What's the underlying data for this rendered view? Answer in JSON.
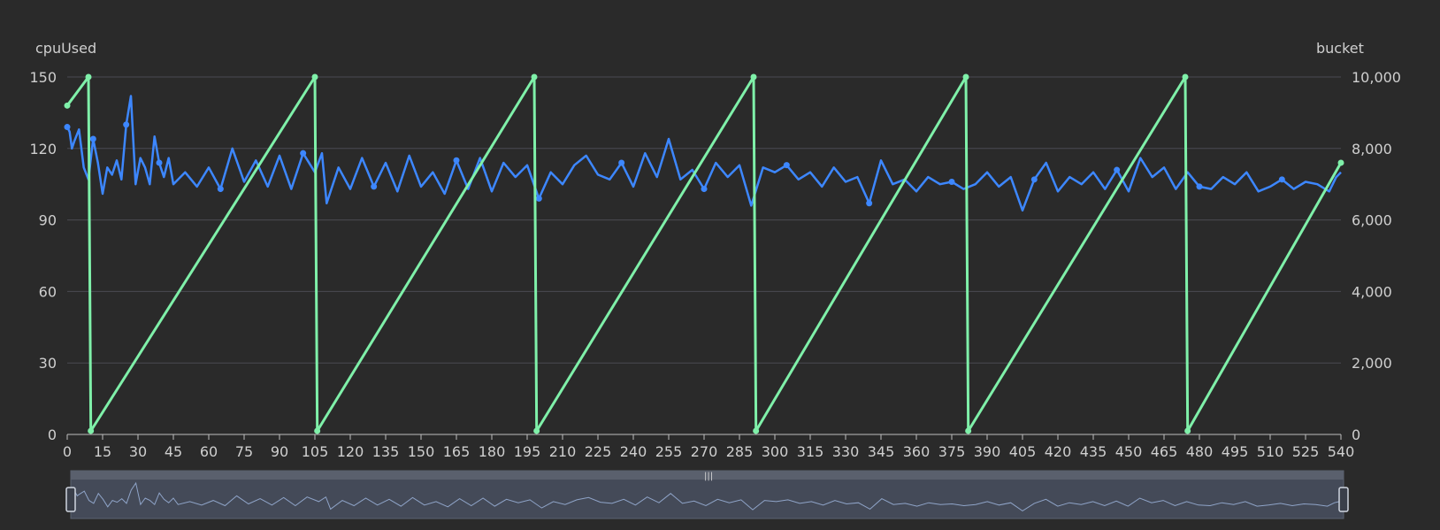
{
  "chart_data": {
    "type": "line",
    "xlabel": "",
    "ylabel_left": "cpuUsed",
    "ylabel_right": "bucket",
    "x_range": [
      0,
      540
    ],
    "x_ticks": [
      "0",
      "15",
      "30",
      "45",
      "60",
      "75",
      "90",
      "105",
      "120",
      "135",
      "150",
      "165",
      "180",
      "195",
      "210",
      "225",
      "240",
      "255",
      "270",
      "285",
      "300",
      "315",
      "330",
      "345",
      "360",
      "375",
      "390",
      "405",
      "420",
      "435",
      "450",
      "465",
      "480",
      "495",
      "510",
      "525",
      "540"
    ],
    "y_left_range": [
      0,
      150
    ],
    "y_left_ticks": [
      "0",
      "30",
      "60",
      "90",
      "120",
      "150"
    ],
    "y_right_range": [
      0,
      10000
    ],
    "y_right_ticks": [
      "0",
      "2,000",
      "4,000",
      "6,000",
      "8,000",
      "10,000"
    ],
    "grid": true,
    "dataZoom": true,
    "series": [
      {
        "axis": "left",
        "color": "#3d87ff",
        "points": [
          [
            0,
            129
          ],
          [
            1,
            127
          ],
          [
            2,
            120
          ],
          [
            3,
            123
          ],
          [
            5,
            128
          ],
          [
            7,
            112
          ],
          [
            9,
            107
          ],
          [
            11,
            124
          ],
          [
            13,
            114
          ],
          [
            15,
            101
          ],
          [
            17,
            112
          ],
          [
            19,
            109
          ],
          [
            21,
            115
          ],
          [
            23,
            107
          ],
          [
            25,
            130
          ],
          [
            27,
            142
          ],
          [
            29,
            105
          ],
          [
            31,
            116
          ],
          [
            33,
            112
          ],
          [
            35,
            105
          ],
          [
            37,
            125
          ],
          [
            39,
            114
          ],
          [
            41,
            108
          ],
          [
            43,
            116
          ],
          [
            45,
            105
          ],
          [
            50,
            110
          ],
          [
            55,
            104
          ],
          [
            60,
            112
          ],
          [
            65,
            103
          ],
          [
            70,
            120
          ],
          [
            75,
            106
          ],
          [
            80,
            115
          ],
          [
            85,
            104
          ],
          [
            90,
            117
          ],
          [
            95,
            103
          ],
          [
            100,
            118
          ],
          [
            105,
            110
          ],
          [
            108,
            118
          ],
          [
            110,
            97
          ],
          [
            115,
            112
          ],
          [
            120,
            103
          ],
          [
            125,
            116
          ],
          [
            130,
            104
          ],
          [
            135,
            114
          ],
          [
            140,
            102
          ],
          [
            145,
            117
          ],
          [
            150,
            104
          ],
          [
            155,
            110
          ],
          [
            160,
            101
          ],
          [
            165,
            115
          ],
          [
            170,
            103
          ],
          [
            175,
            116
          ],
          [
            180,
            102
          ],
          [
            185,
            114
          ],
          [
            190,
            108
          ],
          [
            195,
            113
          ],
          [
            200,
            99
          ],
          [
            205,
            110
          ],
          [
            210,
            105
          ],
          [
            215,
            113
          ],
          [
            220,
            117
          ],
          [
            225,
            109
          ],
          [
            230,
            107
          ],
          [
            235,
            114
          ],
          [
            240,
            104
          ],
          [
            245,
            118
          ],
          [
            250,
            108
          ],
          [
            255,
            124
          ],
          [
            260,
            107
          ],
          [
            265,
            111
          ],
          [
            270,
            103
          ],
          [
            275,
            114
          ],
          [
            280,
            108
          ],
          [
            285,
            113
          ],
          [
            290,
            96
          ],
          [
            295,
            112
          ],
          [
            300,
            110
          ],
          [
            305,
            113
          ],
          [
            310,
            107
          ],
          [
            315,
            110
          ],
          [
            320,
            104
          ],
          [
            325,
            112
          ],
          [
            330,
            106
          ],
          [
            335,
            108
          ],
          [
            340,
            97
          ],
          [
            345,
            115
          ],
          [
            350,
            105
          ],
          [
            355,
            107
          ],
          [
            360,
            102
          ],
          [
            365,
            108
          ],
          [
            370,
            105
          ],
          [
            375,
            106
          ],
          [
            380,
            103
          ],
          [
            385,
            105
          ],
          [
            390,
            110
          ],
          [
            395,
            104
          ],
          [
            400,
            108
          ],
          [
            405,
            94
          ],
          [
            410,
            107
          ],
          [
            415,
            114
          ],
          [
            420,
            102
          ],
          [
            425,
            108
          ],
          [
            430,
            105
          ],
          [
            435,
            110
          ],
          [
            440,
            103
          ],
          [
            445,
            111
          ],
          [
            450,
            102
          ],
          [
            455,
            116
          ],
          [
            460,
            108
          ],
          [
            465,
            112
          ],
          [
            470,
            103
          ],
          [
            475,
            110
          ],
          [
            480,
            104
          ],
          [
            485,
            103
          ],
          [
            490,
            108
          ],
          [
            495,
            105
          ],
          [
            500,
            110
          ],
          [
            505,
            102
          ],
          [
            510,
            104
          ],
          [
            515,
            107
          ],
          [
            520,
            103
          ],
          [
            525,
            106
          ],
          [
            530,
            105
          ],
          [
            535,
            102
          ],
          [
            538,
            108
          ],
          [
            540,
            110
          ]
        ]
      },
      {
        "axis": "right",
        "color": "#7ff0a9",
        "points": [
          [
            0,
            9200
          ],
          [
            9,
            10000
          ],
          [
            10,
            100
          ],
          [
            105,
            10000
          ],
          [
            106,
            100
          ],
          [
            198,
            10000
          ],
          [
            199,
            100
          ],
          [
            291,
            10000
          ],
          [
            292,
            100
          ],
          [
            381,
            10000
          ],
          [
            382,
            100
          ],
          [
            474,
            10000
          ],
          [
            475,
            100
          ],
          [
            540,
            7600
          ]
        ]
      }
    ]
  }
}
